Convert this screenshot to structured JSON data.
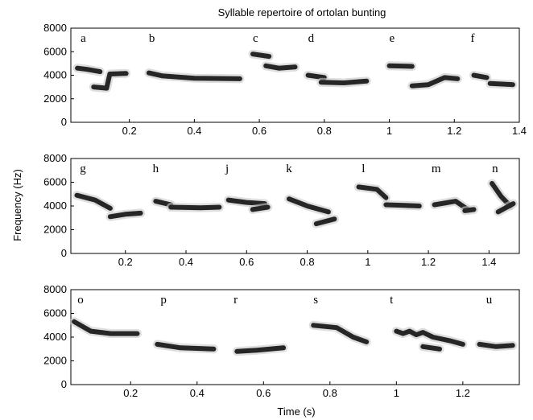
{
  "chart_data": {
    "type": "spectrogram",
    "title": "Syllable repertoire of ortolan bunting",
    "xlabel": "Time (s)",
    "ylabel": "Frequency (Hz)",
    "ylim": [
      0,
      8000
    ],
    "yticks": [
      0,
      2000,
      4000,
      6000,
      8000
    ],
    "panels": [
      {
        "xlim": [
          0.02,
          1.4
        ],
        "xticks": [
          0.2,
          0.4,
          0.6,
          0.8,
          1,
          1.2,
          1.4
        ],
        "syllables": [
          {
            "label": "a",
            "label_t": 0.05,
            "strokes": [
              [
                [
                  0.04,
                  4600
                ],
                [
                  0.07,
                  4500
                ],
                [
                  0.11,
                  4300
                ]
              ],
              [
                [
                  0.09,
                  3000
                ],
                [
                  0.13,
                  2900
                ],
                [
                  0.14,
                  4100
                ],
                [
                  0.19,
                  4150
                ]
              ]
            ]
          },
          {
            "label": "b",
            "label_t": 0.26,
            "strokes": [
              [
                [
                  0.26,
                  4200
                ],
                [
                  0.3,
                  3950
                ],
                [
                  0.4,
                  3750
                ],
                [
                  0.54,
                  3700
                ]
              ]
            ]
          },
          {
            "label": "c",
            "label_t": 0.58,
            "strokes": [
              [
                [
                  0.58,
                  5800
                ],
                [
                  0.63,
                  5600
                ]
              ],
              [
                [
                  0.62,
                  4800
                ],
                [
                  0.66,
                  4600
                ],
                [
                  0.71,
                  4700
                ]
              ]
            ]
          },
          {
            "label": "d",
            "label_t": 0.75,
            "strokes": [
              [
                [
                  0.75,
                  4000
                ],
                [
                  0.8,
                  3800
                ]
              ],
              [
                [
                  0.79,
                  3400
                ],
                [
                  0.86,
                  3350
                ],
                [
                  0.93,
                  3500
                ]
              ]
            ]
          },
          {
            "label": "e",
            "label_t": 1.0,
            "strokes": [
              [
                [
                  1.0,
                  4800
                ],
                [
                  1.07,
                  4750
                ]
              ],
              [
                [
                  1.07,
                  3100
                ],
                [
                  1.12,
                  3200
                ],
                [
                  1.17,
                  3800
                ],
                [
                  1.21,
                  3700
                ]
              ]
            ]
          },
          {
            "label": "f",
            "label_t": 1.25,
            "strokes": [
              [
                [
                  1.26,
                  4000
                ],
                [
                  1.3,
                  3800
                ]
              ],
              [
                [
                  1.31,
                  3300
                ],
                [
                  1.38,
                  3200
                ]
              ]
            ]
          }
        ]
      },
      {
        "xlim": [
          0.02,
          1.5
        ],
        "xticks": [
          0.2,
          0.4,
          0.6,
          0.8,
          1,
          1.2,
          1.4
        ],
        "syllables": [
          {
            "label": "g",
            "label_t": 0.05,
            "strokes": [
              [
                [
                  0.04,
                  4900
                ],
                [
                  0.1,
                  4500
                ],
                [
                  0.15,
                  3800
                ]
              ],
              [
                [
                  0.15,
                  3100
                ],
                [
                  0.2,
                  3300
                ],
                [
                  0.25,
                  3400
                ]
              ]
            ]
          },
          {
            "label": "h",
            "label_t": 0.29,
            "strokes": [
              [
                [
                  0.3,
                  4400
                ],
                [
                  0.35,
                  4100
                ]
              ],
              [
                [
                  0.35,
                  3900
                ],
                [
                  0.45,
                  3850
                ],
                [
                  0.51,
                  3900
                ]
              ]
            ]
          },
          {
            "label": "j",
            "label_t": 0.53,
            "strokes": [
              [
                [
                  0.54,
                  4500
                ],
                [
                  0.6,
                  4300
                ],
                [
                  0.66,
                  4200
                ]
              ],
              [
                [
                  0.62,
                  3700
                ],
                [
                  0.67,
                  3900
                ]
              ]
            ]
          },
          {
            "label": "k",
            "label_t": 0.73,
            "strokes": [
              [
                [
                  0.74,
                  4600
                ],
                [
                  0.8,
                  4000
                ],
                [
                  0.87,
                  3500
                ]
              ],
              [
                [
                  0.83,
                  2500
                ],
                [
                  0.89,
                  2900
                ]
              ]
            ]
          },
          {
            "label": "l",
            "label_t": 0.98,
            "strokes": [
              [
                [
                  0.97,
                  5600
                ],
                [
                  1.03,
                  5400
                ],
                [
                  1.06,
                  4700
                ]
              ],
              [
                [
                  1.06,
                  4100
                ],
                [
                  1.12,
                  4050
                ],
                [
                  1.17,
                  4000
                ]
              ]
            ]
          },
          {
            "label": "m",
            "label_t": 1.21,
            "strokes": [
              [
                [
                  1.22,
                  4100
                ],
                [
                  1.29,
                  4400
                ],
                [
                  1.33,
                  3700
                ]
              ],
              [
                [
                  1.32,
                  3600
                ],
                [
                  1.35,
                  3700
                ]
              ]
            ]
          },
          {
            "label": "n",
            "label_t": 1.41,
            "strokes": [
              [
                [
                  1.41,
                  5900
                ],
                [
                  1.44,
                  4800
                ],
                [
                  1.47,
                  4000
                ]
              ],
              [
                [
                  1.43,
                  3500
                ],
                [
                  1.48,
                  4200
                ]
              ]
            ]
          }
        ]
      },
      {
        "xlim": [
          0.02,
          1.37
        ],
        "xticks": [
          0.2,
          0.4,
          0.6,
          0.8,
          1,
          1.2
        ],
        "syllables": [
          {
            "label": "o",
            "label_t": 0.04,
            "strokes": [
              [
                [
                  0.03,
                  5300
                ],
                [
                  0.08,
                  4500
                ],
                [
                  0.14,
                  4300
                ],
                [
                  0.22,
                  4300
                ]
              ]
            ]
          },
          {
            "label": "p",
            "label_t": 0.29,
            "strokes": [
              [
                [
                  0.28,
                  3400
                ],
                [
                  0.35,
                  3100
                ],
                [
                  0.45,
                  3000
                ]
              ]
            ]
          },
          {
            "label": "r",
            "label_t": 0.51,
            "strokes": [
              [
                [
                  0.52,
                  2800
                ],
                [
                  0.58,
                  2900
                ],
                [
                  0.66,
                  3100
                ]
              ]
            ]
          },
          {
            "label": "s",
            "label_t": 0.75,
            "strokes": [
              [
                [
                  0.75,
                  5000
                ],
                [
                  0.82,
                  4800
                ],
                [
                  0.87,
                  4000
                ],
                [
                  0.91,
                  3600
                ]
              ]
            ]
          },
          {
            "label": "t",
            "label_t": 0.98,
            "strokes": [
              [
                [
                  1.0,
                  4500
                ],
                [
                  1.02,
                  4300
                ],
                [
                  1.04,
                  4500
                ],
                [
                  1.06,
                  4200
                ],
                [
                  1.08,
                  4400
                ],
                [
                  1.11,
                  4000
                ],
                [
                  1.16,
                  3700
                ],
                [
                  1.2,
                  3400
                ]
              ],
              [
                [
                  1.08,
                  3200
                ],
                [
                  1.13,
                  3000
                ]
              ]
            ]
          },
          {
            "label": "u",
            "label_t": 1.27,
            "strokes": [
              [
                [
                  1.25,
                  3400
                ],
                [
                  1.3,
                  3200
                ],
                [
                  1.35,
                  3300
                ]
              ]
            ]
          }
        ]
      }
    ]
  }
}
